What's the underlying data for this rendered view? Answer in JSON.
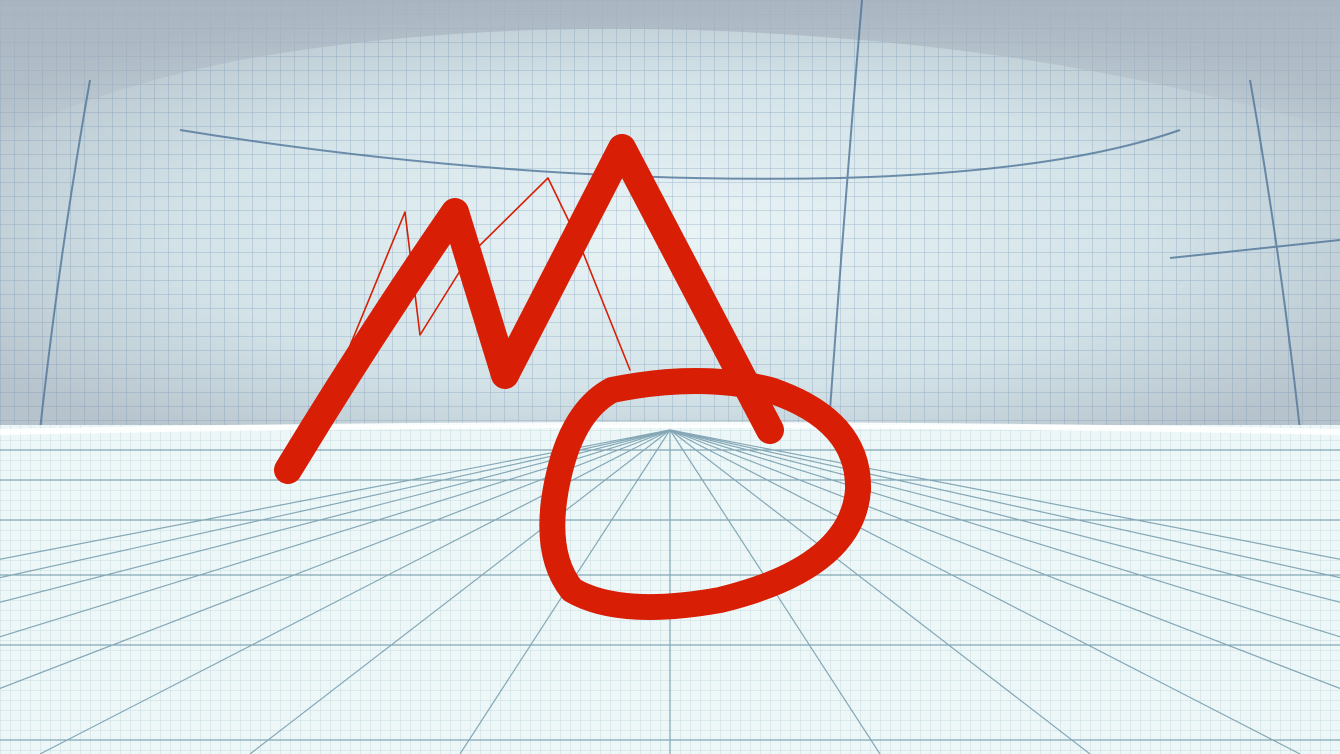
{
  "scene": {
    "sky_color": "#cfe0e6",
    "sky_shadow_color": "#a9b6c2",
    "floor_color": "#eef7f7",
    "grid_color": "#6f8fb0",
    "floor_grid_color": "#7fa9b5",
    "ink_color": "#d81e05"
  },
  "icons": {
    "ink_stroke": "brush-stroke-icon"
  }
}
